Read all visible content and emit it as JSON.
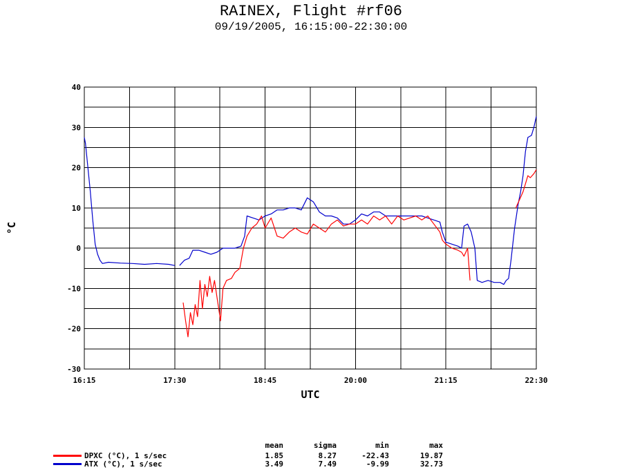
{
  "chart_data": {
    "type": "line",
    "title": "RAINEX, Flight #rf06",
    "subtitle": "09/19/2005, 16:15:00-22:30:00",
    "xlabel": "UTC",
    "ylabel": "°C",
    "x_tick_labels": [
      "16:15",
      "17:30",
      "18:45",
      "20:00",
      "21:15",
      "22:30"
    ],
    "y_tick_labels": [
      "-30",
      "-20",
      "-10",
      "0",
      "10",
      "20",
      "30",
      "40"
    ],
    "xlim": [
      "16:15",
      "22:30"
    ],
    "ylim": [
      -30,
      40
    ],
    "grid": true,
    "series": [
      {
        "name": "DPXC (°C), 1 s/sec",
        "color": "#ff0000",
        "points": [
          [
            "17:37",
            -13.5
          ],
          [
            "17:39",
            -18
          ],
          [
            "17:41",
            -22
          ],
          [
            "17:43",
            -16
          ],
          [
            "17:45",
            -19
          ],
          [
            "17:47",
            -14
          ],
          [
            "17:49",
            -17
          ],
          [
            "17:51",
            -8
          ],
          [
            "17:53",
            -15
          ],
          [
            "17:55",
            -9
          ],
          [
            "17:57",
            -12
          ],
          [
            "17:59",
            -7
          ],
          [
            "18:01",
            -11
          ],
          [
            "18:03",
            -8
          ],
          [
            "18:05",
            -12
          ],
          [
            "18:08",
            -18
          ],
          [
            "18:10",
            -10
          ],
          [
            "18:13",
            -8
          ],
          [
            "18:17",
            -7.5
          ],
          [
            "18:20",
            -6
          ],
          [
            "18:24",
            -5
          ],
          [
            "18:27",
            0
          ],
          [
            "18:30",
            3
          ],
          [
            "18:34",
            5
          ],
          [
            "18:38",
            6
          ],
          [
            "18:42",
            8
          ],
          [
            "18:45",
            5
          ],
          [
            "18:50",
            7.5
          ],
          [
            "18:55",
            3
          ],
          [
            "19:00",
            2.5
          ],
          [
            "19:05",
            4
          ],
          [
            "19:10",
            5
          ],
          [
            "19:15",
            4
          ],
          [
            "19:20",
            3.5
          ],
          [
            "19:25",
            6
          ],
          [
            "19:30",
            5
          ],
          [
            "19:35",
            4
          ],
          [
            "19:40",
            6
          ],
          [
            "19:45",
            7
          ],
          [
            "19:50",
            5.5
          ],
          [
            "19:55",
            6
          ],
          [
            "20:00",
            6
          ],
          [
            "20:05",
            7
          ],
          [
            "20:10",
            6
          ],
          [
            "20:15",
            8
          ],
          [
            "20:20",
            7
          ],
          [
            "20:25",
            8
          ],
          [
            "20:30",
            6
          ],
          [
            "20:35",
            8
          ],
          [
            "20:40",
            7
          ],
          [
            "20:45",
            7.5
          ],
          [
            "20:50",
            8
          ],
          [
            "20:55",
            7
          ],
          [
            "21:00",
            8
          ],
          [
            "21:05",
            6
          ],
          [
            "21:10",
            4
          ],
          [
            "21:12",
            2
          ],
          [
            "21:15",
            1
          ],
          [
            "21:20",
            0
          ],
          [
            "21:25",
            -0.5
          ],
          [
            "21:28",
            -1
          ],
          [
            "21:30",
            -2
          ],
          [
            "21:33",
            0
          ],
          [
            "21:35",
            -8
          ]
        ],
        "trailing_points": [
          [
            "22:13",
            10
          ],
          [
            "22:16",
            12
          ],
          [
            "22:19",
            14
          ],
          [
            "22:21",
            16
          ],
          [
            "22:23",
            18
          ],
          [
            "22:25",
            17.5
          ],
          [
            "22:28",
            18.5
          ],
          [
            "22:30",
            19.5
          ]
        ]
      },
      {
        "name": "ATX (°C), 1 s/sec",
        "color": "#0000cc",
        "points": [
          [
            "16:15",
            27.5
          ],
          [
            "16:16",
            26
          ],
          [
            "16:18",
            20
          ],
          [
            "16:20",
            14
          ],
          [
            "16:22",
            7
          ],
          [
            "16:24",
            1
          ],
          [
            "16:26",
            -1.5
          ],
          [
            "16:28",
            -3
          ],
          [
            "16:30",
            -3.8
          ],
          [
            "16:35",
            -3.5
          ],
          [
            "16:45",
            -3.7
          ],
          [
            "16:55",
            -3.8
          ],
          [
            "17:05",
            -4
          ],
          [
            "17:15",
            -3.8
          ],
          [
            "17:25",
            -4
          ],
          [
            "17:30",
            -4.3
          ]
        ],
        "segment2": [
          [
            "17:34",
            -4.3
          ],
          [
            "17:38",
            -3
          ],
          [
            "17:42",
            -2.5
          ],
          [
            "17:45",
            -0.5
          ],
          [
            "17:50",
            -0.5
          ],
          [
            "17:55",
            -1
          ],
          [
            "18:00",
            -1.5
          ],
          [
            "18:05",
            -1
          ],
          [
            "18:10",
            0
          ],
          [
            "18:15",
            0
          ],
          [
            "18:20",
            0
          ],
          [
            "18:25",
            0.5
          ],
          [
            "18:28",
            3
          ],
          [
            "18:30",
            8
          ],
          [
            "18:35",
            7.5
          ],
          [
            "18:40",
            7
          ],
          [
            "18:45",
            8
          ],
          [
            "18:50",
            8.5
          ],
          [
            "18:55",
            9.5
          ],
          [
            "19:00",
            9.5
          ],
          [
            "19:05",
            10
          ],
          [
            "19:10",
            10
          ],
          [
            "19:15",
            9.5
          ],
          [
            "19:20",
            12.5
          ],
          [
            "19:25",
            11.5
          ],
          [
            "19:30",
            9
          ],
          [
            "19:35",
            8
          ],
          [
            "19:40",
            8
          ],
          [
            "19:45",
            7.5
          ],
          [
            "19:50",
            6
          ],
          [
            "19:55",
            6
          ],
          [
            "20:00",
            7
          ],
          [
            "20:05",
            8.5
          ],
          [
            "20:10",
            8
          ],
          [
            "20:15",
            9
          ],
          [
            "20:20",
            9
          ],
          [
            "20:25",
            8
          ],
          [
            "20:30",
            8
          ],
          [
            "20:35",
            8
          ],
          [
            "20:40",
            8
          ],
          [
            "20:45",
            8
          ],
          [
            "20:50",
            8
          ],
          [
            "20:55",
            8
          ],
          [
            "21:00",
            7.5
          ],
          [
            "21:05",
            7
          ],
          [
            "21:10",
            6.5
          ],
          [
            "21:12",
            4
          ],
          [
            "21:15",
            1.5
          ],
          [
            "21:20",
            1
          ],
          [
            "21:25",
            0.5
          ],
          [
            "21:28",
            0
          ],
          [
            "21:30",
            5.5
          ],
          [
            "21:33",
            6
          ],
          [
            "21:36",
            4
          ],
          [
            "21:39",
            0
          ],
          [
            "21:41",
            -8
          ],
          [
            "21:45",
            -8.5
          ],
          [
            "21:50",
            -8
          ],
          [
            "21:55",
            -8.5
          ],
          [
            "22:00",
            -8.5
          ],
          [
            "22:03",
            -9
          ],
          [
            "22:05",
            -8
          ],
          [
            "22:07",
            -7.5
          ],
          [
            "22:09",
            -3
          ],
          [
            "22:12",
            5
          ],
          [
            "22:15",
            11
          ],
          [
            "22:17",
            14
          ],
          [
            "22:19",
            18
          ],
          [
            "22:21",
            24
          ],
          [
            "22:23",
            27.5
          ],
          [
            "22:26",
            28
          ],
          [
            "22:28",
            30
          ],
          [
            "22:30",
            32.7
          ]
        ]
      }
    ]
  },
  "stats": {
    "headers": [
      "mean",
      "sigma",
      "min",
      "max"
    ],
    "rows": [
      {
        "label": "DPXC (°C), 1 s/sec",
        "color": "#ff0000",
        "values": [
          "1.85",
          "8.27",
          "-22.43",
          "19.87"
        ]
      },
      {
        "label": "ATX (°C), 1 s/sec",
        "color": "#0000cc",
        "values": [
          "3.49",
          "7.49",
          "-9.99",
          "32.73"
        ]
      }
    ]
  }
}
